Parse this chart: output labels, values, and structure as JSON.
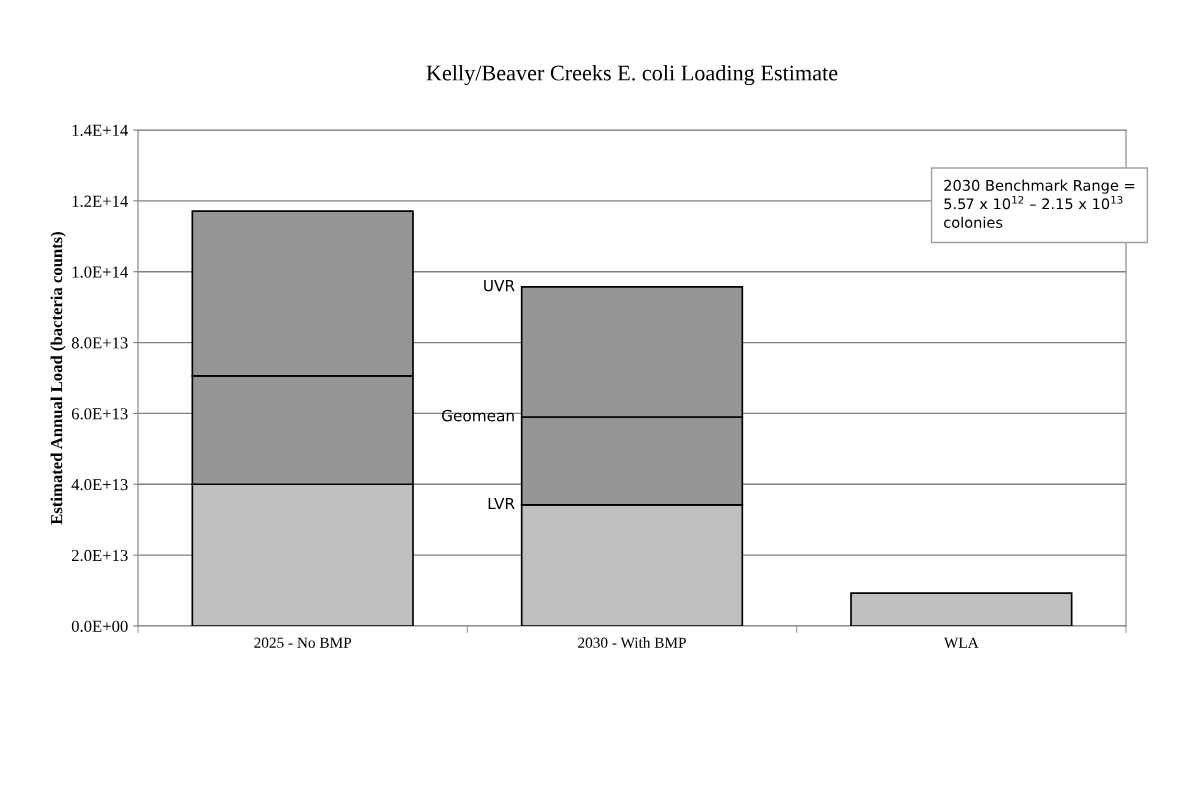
{
  "chart_data": {
    "type": "bar",
    "title": "Kelly/Beaver Creeks E. coli Loading Estimate",
    "ylabel": "Estimated Annual Load (bacteria counts)",
    "categories": [
      "2025 - No BMP",
      "2030 - With BMP",
      "WLA"
    ],
    "stacked": true,
    "series": [
      {
        "color": "#c0c0c0",
        "values": [
          40000000000000.0,
          34200000000000.0,
          9300000000000.0
        ]
      },
      {
        "color": "#969696",
        "values": [
          30600000000000.0,
          24800000000000.0,
          null
        ]
      },
      {
        "color": "#969696",
        "values": [
          46500000000000.0,
          36700000000000.0,
          null
        ]
      }
    ],
    "ylim": [
      0,
      140000000000000.0
    ],
    "yticks": [
      {
        "value": 0,
        "label": "0.0E+00"
      },
      {
        "value": 20000000000000.0,
        "label": "2.0E+13"
      },
      {
        "value": 40000000000000.0,
        "label": "4.0E+13"
      },
      {
        "value": 60000000000000.0,
        "label": "6.0E+13"
      },
      {
        "value": 80000000000000.0,
        "label": "8.0E+13"
      },
      {
        "value": 100000000000000.0,
        "label": "1.0E+14"
      },
      {
        "value": 120000000000000.0,
        "label": "1.2E+14"
      },
      {
        "value": 140000000000000.0,
        "label": "1.4E+14"
      }
    ],
    "grid": "y",
    "legend": false,
    "annotations": [
      "UVR",
      "Geomean",
      "LVR",
      "2030 Benchmark Range =\n5.57 x 10$^{12}$ – 2.15 x 10$^{13}$\ncolonies"
    ]
  }
}
